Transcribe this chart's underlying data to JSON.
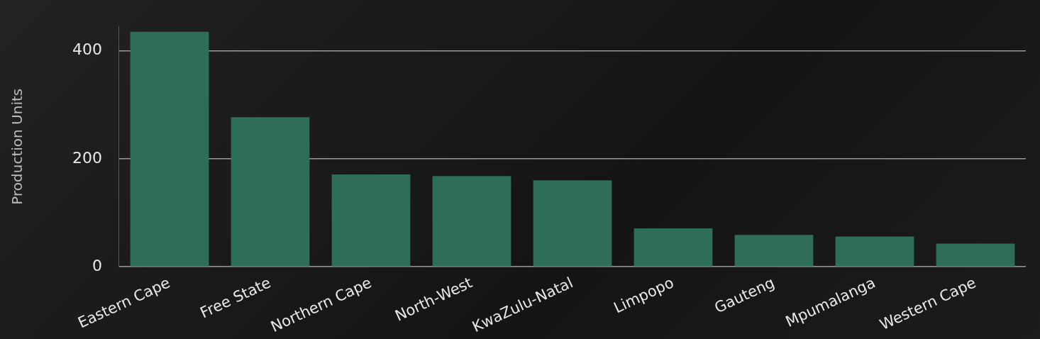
{
  "chart_data": {
    "type": "bar",
    "ylabel": "Production Units",
    "categories": [
      "Eastern Cape",
      "Free State",
      "Northern Cape",
      "North-West",
      "KwaZulu-Natal",
      "Limpopo",
      "Gauteng",
      "Mpumalanga",
      "Western Cape"
    ],
    "values": [
      435,
      277,
      171,
      168,
      160,
      71,
      59,
      56,
      43
    ],
    "color": "#2e6e58",
    "ylim": [
      0,
      445
    ],
    "yticks": [
      0,
      200,
      400
    ],
    "grid": "y"
  }
}
